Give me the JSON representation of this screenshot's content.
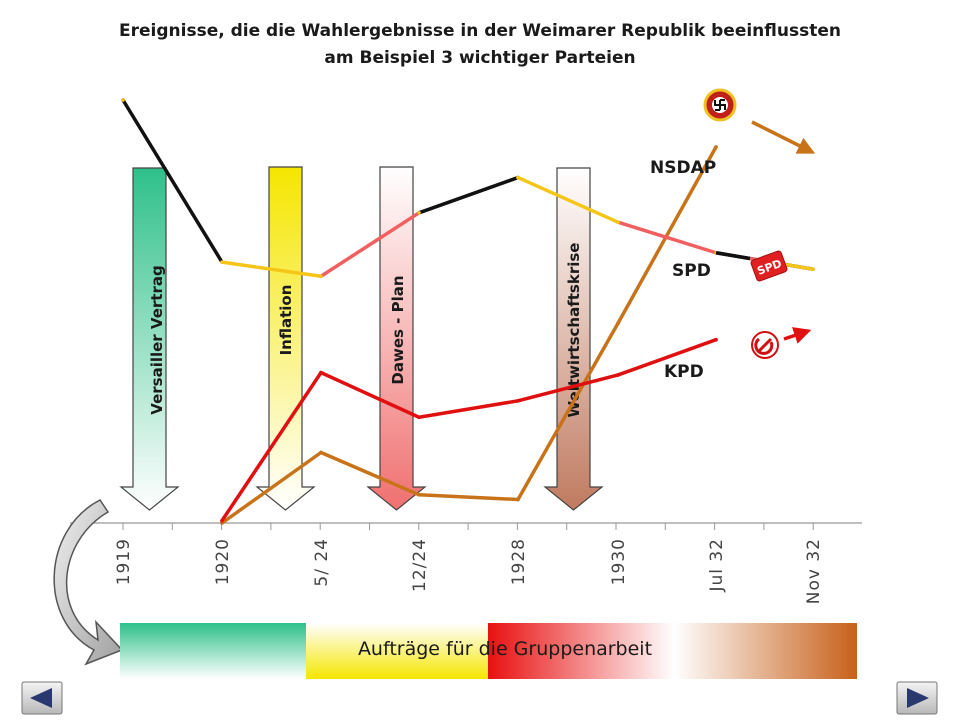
{
  "title_line1": "Ereignisse, die die Wahlergebnisse in der Weimarer Republik beeinflussten",
  "title_line2": "am Beispiel 3 wichtiger Parteien",
  "task_label": "Aufträge für die Gruppenarbeit",
  "nav": {
    "prev": "previous-slide",
    "next": "next-slide"
  },
  "chart_data": {
    "type": "line",
    "categories": [
      "1919",
      "1920",
      "5/ 24",
      "12/24",
      "1928",
      "1930",
      "Jul 32",
      "Nov 32"
    ],
    "series": [
      {
        "name": "NSDAP",
        "color": "#c8731a",
        "values": [
          null,
          0,
          3.0,
          1.2,
          1.0,
          8.5,
          16.0,
          14.0
        ]
      },
      {
        "name": "SPD",
        "color": "#f5c518",
        "values": [
          18.0,
          11.1,
          10.5,
          13.2,
          14.7,
          12.8,
          11.5,
          10.8
        ]
      },
      {
        "name": "KPD",
        "color": "#e01010",
        "values": [
          null,
          0.1,
          6.4,
          4.5,
          5.2,
          6.3,
          7.8,
          9.0
        ]
      }
    ],
    "events": [
      {
        "label": "Versailler Vertrag",
        "color_top": "#2ec08a",
        "color_bottom": "#ffffff"
      },
      {
        "label": "Inflation",
        "color_top": "#f5e600",
        "color_bottom": "#ffffff"
      },
      {
        "label": "Dawes - Plan",
        "color_top": "#ffffff",
        "color_bottom": "#f07070"
      },
      {
        "label": "Weltwirtschaftskrise",
        "color_top": "#ffffff",
        "color_bottom": "#c07a60"
      }
    ],
    "title": "",
    "xlabel": "",
    "ylabel": "",
    "grid": false,
    "legend": "labels-at-line-ends"
  }
}
